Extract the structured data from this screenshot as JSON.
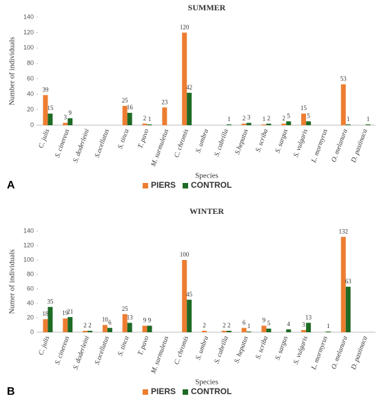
{
  "chart_data": [
    {
      "type": "bar",
      "panel": "A",
      "title": "SUMMER",
      "x_label": "Species",
      "y_label": "Number of individuals",
      "categories": [
        "C. julis",
        "S. cinereus",
        "S. doderleini",
        "S.ocellatus",
        "S. tinca",
        "T. pavo",
        "M. surmuletus",
        "C. chromis",
        "S. umbra",
        "S. cabrilla",
        "S.hepatus",
        "S. scriba",
        "S. sargus",
        "S. vulgaris",
        "L. mormyrus",
        "O. melanura",
        "D. pastinaca"
      ],
      "series": [
        {
          "name": "PIERS",
          "color": "#ed7d31",
          "values": [
            39,
            3,
            null,
            null,
            25,
            2,
            23,
            120,
            null,
            null,
            2,
            1,
            2,
            15,
            null,
            53,
            null
          ]
        },
        {
          "name": "CONTROL",
          "color": "#1e6b25",
          "values": [
            15,
            9,
            null,
            null,
            16,
            1,
            null,
            42,
            null,
            1,
            3,
            2,
            5,
            5,
            null,
            1,
            1
          ]
        }
      ],
      "ylim": [
        0,
        140
      ],
      "yticks": [
        0,
        20,
        40,
        60,
        80,
        100,
        120,
        140
      ],
      "legend": "bottom"
    },
    {
      "type": "bar",
      "panel": "B",
      "title": "WINTER",
      "x_label": "Species",
      "y_label": "Numer of individuals",
      "categories": [
        "C. julis",
        "S. cinereus",
        "S. doderleini",
        "S.ocellatus",
        "S. tinca",
        "T. pavo",
        "M. surmuletus",
        "C. chromis",
        "S. umbra",
        "S. cabrilla",
        "S. hepatus",
        "S. scriba",
        "S. sargus",
        "S. vulgaris",
        "L. mormyrus",
        "O. melanura",
        "D. pastinaca"
      ],
      "series": [
        {
          "name": "PIERS",
          "color": "#ed7d31",
          "values": [
            18,
            19,
            2,
            10,
            25,
            9,
            null,
            100,
            2,
            2,
            6,
            9,
            null,
            3,
            null,
            132,
            null
          ]
        },
        {
          "name": "CONTROL",
          "color": "#1e6b25",
          "values": [
            35,
            21,
            2,
            6,
            13,
            9,
            null,
            45,
            null,
            2,
            1,
            5,
            4,
            13,
            1,
            63,
            null
          ]
        }
      ],
      "ylim": [
        0,
        140
      ],
      "yticks": [
        0,
        20,
        40,
        60,
        80,
        100,
        120,
        140
      ],
      "legend": "bottom"
    }
  ]
}
